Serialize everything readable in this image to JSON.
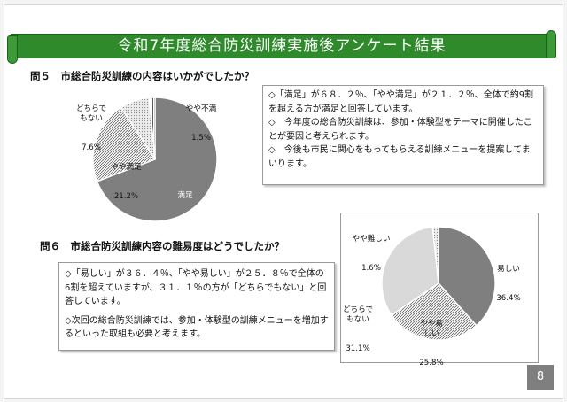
{
  "title": "令和7年度総合防災訓練実施後アンケート結果",
  "page_number": "8",
  "q5": {
    "label": "問５　市総合防災訓練の内容はいかがでしたか？",
    "notes": [
      "◇「満足」が６８．２％、「やや満足」が２１．２％、全体で約9割を超える方が満足と回答しています。",
      "◇　今年度の総合防災訓練は、参加・体験型をテーマに開催したことが要因と考えられます。",
      "◇　今後も市民に関心をもってもらえる訓練メニューを提案してまいります。"
    ]
  },
  "q6": {
    "label": "問６　市総合防災訓練内容の難易度はどうでしたか？",
    "notes": [
      "◇「易しい」が３６．４％、「やや易しい」が２５．８％で全体の6割を超えていますが、３１．１％の方が「どちらでもない」と回答しています。",
      "◇次回の総合防災訓練では、参加・体験型の訓練メニューを増加するといった取組も必要と考えます。"
    ]
  },
  "colors": {
    "banner": "#2f8a2b",
    "pie_dark": "#7f7f7f",
    "pie_light": "#d9d9d9",
    "page_box": "#7f7f7f"
  },
  "chart_data": [
    {
      "type": "pie",
      "categories": [
        "満足",
        "やや満足",
        "どちらでもない",
        "やや不満"
      ],
      "values": [
        68.2,
        21.2,
        7.6,
        1.5
      ],
      "labels": [
        {
          "name": "満足",
          "value": "68.2%"
        },
        {
          "name": "やや満足",
          "value": "21.2%"
        },
        {
          "name": "どちらで\nもない",
          "value": "7.6%"
        },
        {
          "name": "やや不満",
          "value": "1.5%"
        }
      ]
    },
    {
      "type": "pie",
      "categories": [
        "易しい",
        "やや易しい",
        "どちらでもない",
        "やや難しい"
      ],
      "values": [
        36.4,
        25.8,
        31.1,
        1.6
      ],
      "labels": [
        {
          "name": "易しい",
          "value": "36.4%"
        },
        {
          "name": "やや易\nしい",
          "value": "25.8%"
        },
        {
          "name": "どちらで\nもない",
          "value": "31.1%"
        },
        {
          "name": "やや難しい",
          "value": "1.6%"
        }
      ]
    }
  ]
}
